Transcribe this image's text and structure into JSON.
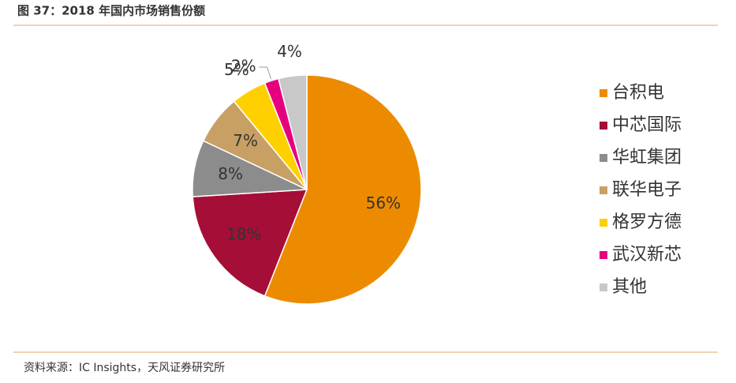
{
  "chart_data": {
    "type": "pie",
    "title": "图 37：2018 年国内市场销售份额",
    "source": "资料来源：IC Insights，天风证券研究所",
    "categories": [
      "台积电",
      "中芯国际",
      "华虹集团",
      "联华电子",
      "格罗方德",
      "武汉新芯",
      "其他"
    ],
    "values": [
      56,
      18,
      8,
      7,
      5,
      2,
      4
    ],
    "value_labels": [
      "56%",
      "18%",
      "8%",
      "7%",
      "5%",
      "2%",
      "4%"
    ],
    "colors": [
      "#ed8b00",
      "#a50e36",
      "#8c8c8c",
      "#c8a064",
      "#ffd000",
      "#e6007e",
      "#c8c8c8"
    ],
    "legend": "right"
  }
}
